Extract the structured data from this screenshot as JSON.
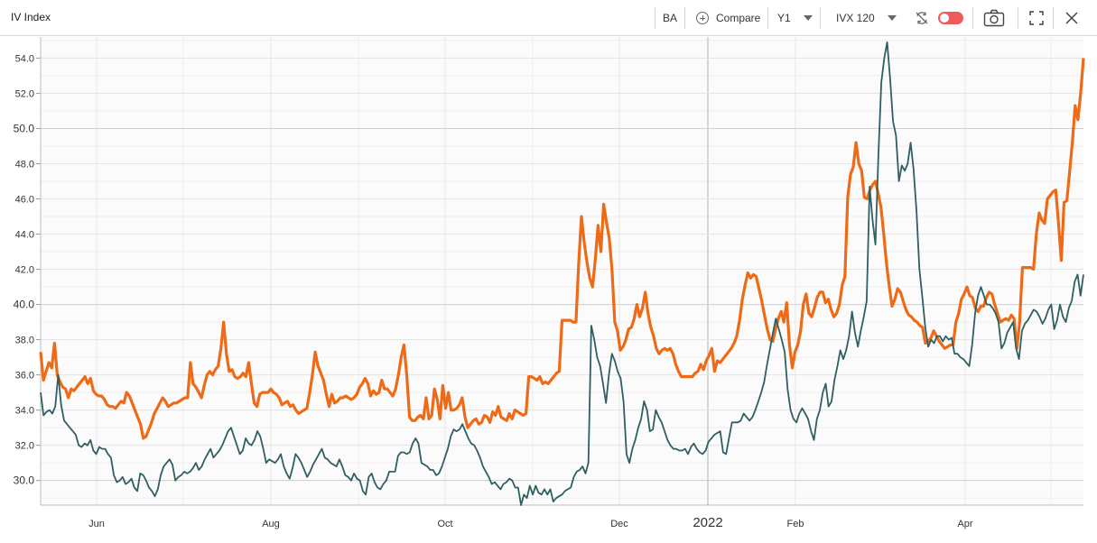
{
  "header": {
    "title": "IV Index",
    "ticker": "BA",
    "compare_label": "Compare",
    "period": "Y1",
    "measure": "IVX 120"
  },
  "colors": {
    "series_orange": "#ee6a17",
    "series_teal": "#2f5f62",
    "toggle": "#f15a5a"
  },
  "icons": [
    "plus-circle-icon",
    "chevron-down-icon",
    "sync-off-icon",
    "toggle-switch",
    "camera-icon",
    "fullscreen-icon",
    "close-icon"
  ],
  "chart_data": {
    "type": "line",
    "y_ticks": [
      "30.0",
      "32.0",
      "34.0",
      "36.0",
      "38.0",
      "40.0",
      "42.0",
      "44.0",
      "46.0",
      "48.0",
      "50.0",
      "52.0",
      "54.0"
    ],
    "ylim": [
      28.6,
      55.2
    ],
    "x_labels": [
      "Jun",
      "Aug",
      "Oct",
      "Dec",
      "2022",
      "Feb",
      "Apr"
    ],
    "grid": true,
    "series": [
      {
        "color": "#ee6a17",
        "values": [
          37.3,
          35.7,
          36.2,
          36.7,
          36.4,
          37.8,
          36.0,
          35.6,
          35.3,
          35.2,
          34.7,
          35.2,
          35.1,
          35.3,
          35.5,
          35.7,
          35.9,
          35.5,
          35.8,
          35.1,
          34.9,
          34.8,
          34.8,
          34.6,
          34.3,
          34.2,
          34.2,
          34.1,
          34.3,
          34.5,
          34.4,
          35.0,
          34.8,
          34.4,
          34.0,
          33.6,
          33.2,
          32.4,
          32.5,
          32.9,
          33.3,
          33.8,
          34.1,
          34.4,
          34.7,
          34.5,
          34.2,
          34.3,
          34.4,
          34.4,
          34.5,
          34.6,
          34.7,
          34.7,
          36.7,
          35.5,
          35.3,
          35.0,
          34.7,
          35.4,
          36.0,
          36.2,
          36.0,
          36.3,
          36.5,
          37.5,
          39.0,
          37.2,
          36.2,
          36.3,
          35.9,
          35.8,
          35.9,
          36.1,
          35.9,
          36.7,
          35.5,
          34.4,
          34.2,
          34.9,
          35.0,
          35.0,
          35.0,
          35.2,
          35.0,
          34.9,
          34.7,
          34.3,
          34.4,
          34.5,
          34.2,
          34.3,
          34.0,
          33.8,
          33.9,
          34.0,
          34.1,
          35.0,
          36.0,
          37.3,
          36.5,
          36.1,
          35.7,
          34.9,
          34.2,
          34.9,
          34.4,
          34.5,
          34.7,
          34.7,
          34.8,
          34.7,
          34.6,
          34.7,
          34.9,
          35.3,
          35.5,
          35.8,
          35.5,
          34.8,
          35.1,
          34.9,
          35.0,
          35.7,
          35.2,
          35.2,
          35.0,
          34.8,
          35.2,
          36.0,
          37.0,
          37.7,
          36.0,
          33.6,
          33.4,
          33.4,
          33.6,
          33.7,
          33.5,
          34.7,
          33.5,
          33.7,
          35.2,
          34.6,
          33.5,
          35.4,
          34.1,
          35.0,
          34.0,
          34.0,
          34.1,
          34.3,
          34.7,
          33.6,
          33.0,
          33.2,
          33.4,
          33.5,
          33.2,
          33.3,
          33.7,
          33.6,
          33.3,
          33.9,
          33.7,
          34.2,
          33.6,
          33.5,
          33.4,
          33.8,
          33.5,
          34.0,
          33.9,
          33.8,
          33.7,
          33.8,
          35.9,
          35.9,
          35.8,
          35.7,
          35.9,
          35.5,
          35.6,
          35.5,
          35.7,
          35.9,
          36.1,
          36.2,
          39.1,
          39.1,
          39.1,
          39.1,
          39.0,
          39.0,
          42.3,
          45.0,
          43.5,
          42.4,
          41.5,
          41.0,
          42.6,
          44.5,
          43.0,
          45.7,
          44.7,
          43.8,
          42.0,
          39.0,
          38.5,
          37.4,
          37.6,
          38.0,
          38.6,
          38.7,
          39.2,
          40.0,
          39.3,
          39.8,
          40.7,
          39.5,
          38.7,
          38.2,
          37.5,
          37.2,
          37.4,
          37.5,
          37.4,
          37.5,
          37.2,
          36.6,
          36.2,
          35.9,
          35.9,
          35.9,
          35.9,
          35.9,
          36.1,
          36.2,
          36.6,
          36.3,
          36.8,
          37.1,
          37.5,
          36.2,
          36.8,
          36.7,
          36.9,
          37.1,
          37.3,
          37.5,
          37.8,
          38.2,
          39.1,
          40.3,
          41.1,
          41.8,
          41.5,
          41.7,
          41.6,
          40.9,
          40.2,
          39.4,
          38.6,
          38.0,
          37.9,
          38.6,
          39.2,
          39.6,
          39.0,
          40.1,
          37.7,
          36.4,
          37.3,
          37.7,
          38.5,
          40.0,
          40.6,
          39.5,
          39.3,
          39.8,
          40.4,
          40.7,
          40.7,
          40.1,
          40.3,
          39.7,
          39.3,
          39.5,
          40.0,
          41.1,
          41.6,
          46.1,
          47.4,
          47.8,
          49.2,
          48.0,
          47.6,
          46.1,
          46.0,
          46.5,
          46.8,
          47.0,
          46.3,
          45.5,
          44.0,
          42.3,
          41.0,
          39.9,
          40.3,
          40.9,
          40.7,
          40.2,
          39.7,
          39.4,
          39.3,
          39.1,
          39.0,
          38.8,
          38.7,
          37.8,
          37.9,
          38.1,
          38.5,
          38.2,
          37.9,
          37.7,
          37.5,
          37.6,
          37.7,
          37.7,
          39.0,
          39.5,
          40.3,
          40.6,
          41.0,
          40.5,
          40.4,
          39.8,
          39.6,
          39.9,
          39.9,
          40.4,
          40.7,
          40.6,
          40.0,
          39.5,
          39.0,
          39.1,
          39.2,
          39.1,
          39.4,
          39.2,
          37.5,
          39.0,
          42.1,
          42.1,
          42.1,
          42.1,
          42.0,
          44.0,
          45.2,
          44.8,
          44.6,
          46.0,
          46.2,
          46.4,
          46.5,
          44.6,
          42.5,
          45.8,
          45.9,
          47.5,
          49.2,
          51.3,
          50.5,
          52.0,
          54.0
        ]
      },
      {
        "color": "#2f5f62",
        "values": [
          35.0,
          33.7,
          33.9,
          34.0,
          33.8,
          34.2,
          36.0,
          34.3,
          33.4,
          33.2,
          33.0,
          32.8,
          32.6,
          32.0,
          31.9,
          32.1,
          32.0,
          32.3,
          31.7,
          31.5,
          31.9,
          31.8,
          31.8,
          31.5,
          31.3,
          30.3,
          29.9,
          30.0,
          30.2,
          29.8,
          29.9,
          30.1,
          29.6,
          29.4,
          30.4,
          30.3,
          30.0,
          29.6,
          29.4,
          29.1,
          29.5,
          30.3,
          30.8,
          31.0,
          31.2,
          30.9,
          30.0,
          30.2,
          30.3,
          30.5,
          30.4,
          30.5,
          30.7,
          31.0,
          30.6,
          30.8,
          31.2,
          31.5,
          31.8,
          31.3,
          31.5,
          31.7,
          32.0,
          32.4,
          32.8,
          33.0,
          32.5,
          32.0,
          31.5,
          31.7,
          32.4,
          32.1,
          32.0,
          32.3,
          32.8,
          32.5,
          31.8,
          31.0,
          31.2,
          31.1,
          31.0,
          31.2,
          31.5,
          30.8,
          30.4,
          30.1,
          30.7,
          31.5,
          31.3,
          31.0,
          30.6,
          30.2,
          30.5,
          30.9,
          31.2,
          31.5,
          31.8,
          31.3,
          31.2,
          31.0,
          30.9,
          30.8,
          31.2,
          30.8,
          30.3,
          30.2,
          30.0,
          30.4,
          30.1,
          30.0,
          29.4,
          29.2,
          30.2,
          30.4,
          29.9,
          29.6,
          29.5,
          29.8,
          30.0,
          30.5,
          30.5,
          30.5,
          31.4,
          31.6,
          31.6,
          31.5,
          31.6,
          32.1,
          32.4,
          32.1,
          31.0,
          30.9,
          30.8,
          30.6,
          30.6,
          30.3,
          30.4,
          30.8,
          31.3,
          31.8,
          32.5,
          32.9,
          32.8,
          32.9,
          33.2,
          32.8,
          32.4,
          32.1,
          32.0,
          31.7,
          31.3,
          30.8,
          30.5,
          30.2,
          29.8,
          29.9,
          29.7,
          29.5,
          29.8,
          29.9,
          30.1,
          30.0,
          29.6,
          29.6,
          28.6,
          29.2,
          29.0,
          29.7,
          29.2,
          29.7,
          29.3,
          29.2,
          29.5,
          29.2,
          29.5,
          28.8,
          29.0,
          29.1,
          29.2,
          29.4,
          29.5,
          29.6,
          30.2,
          30.5,
          30.6,
          30.8,
          30.4,
          31.0,
          38.8,
          38.0,
          37.0,
          36.5,
          35.5,
          34.4,
          36.0,
          37.2,
          36.8,
          36.2,
          35.8,
          34.5,
          31.5,
          31.0,
          31.8,
          32.3,
          33.0,
          33.5,
          34.5,
          34.0,
          32.8,
          32.9,
          34.0,
          33.6,
          33.3,
          32.8,
          32.3,
          32.0,
          31.8,
          31.8,
          31.7,
          31.7,
          31.8,
          31.5,
          31.9,
          32.1,
          31.8,
          31.6,
          31.5,
          31.7,
          32.2,
          32.4,
          32.6,
          32.7,
          32.8,
          31.6,
          31.5,
          32.4,
          33.3,
          33.3,
          33.3,
          33.4,
          33.8,
          33.6,
          33.4,
          33.6,
          34.0,
          34.5,
          35.0,
          35.6,
          36.6,
          37.5,
          38.4,
          39.2,
          38.6,
          38.0,
          37.3,
          35.2,
          34.0,
          33.5,
          33.3,
          33.8,
          34.1,
          33.8,
          33.5,
          32.8,
          32.3,
          33.5,
          34.0,
          35.0,
          35.5,
          34.2,
          34.5,
          35.7,
          36.5,
          37.4,
          36.9,
          37.4,
          38.2,
          39.6,
          38.4,
          37.6,
          38.5,
          39.3,
          40.2,
          46.7,
          44.8,
          43.4,
          48.5,
          52.6,
          54.0,
          54.9,
          52.8,
          50.4,
          49.6,
          47.0,
          47.9,
          47.6,
          48.0,
          49.2,
          47.7,
          45.3,
          42.0,
          40.4,
          38.7,
          37.6,
          38.0,
          37.8,
          38.2,
          38.2,
          37.9,
          38.2,
          38.0,
          38.1,
          37.2,
          37.2,
          37.0,
          36.9,
          36.7,
          36.5,
          37.7,
          39.5,
          40.5,
          41.0,
          40.5,
          40.0,
          40.0,
          39.8,
          39.5,
          39.0,
          37.5,
          37.8,
          38.4,
          38.7,
          39.0,
          37.5,
          36.9,
          38.5,
          38.9,
          39.1,
          39.4,
          39.7,
          39.6,
          39.3,
          38.9,
          39.2,
          39.7,
          40.0,
          38.6,
          39.1,
          40.0,
          39.3,
          39.0,
          39.8,
          40.2,
          41.3,
          41.7,
          40.5,
          41.7
        ]
      }
    ]
  }
}
